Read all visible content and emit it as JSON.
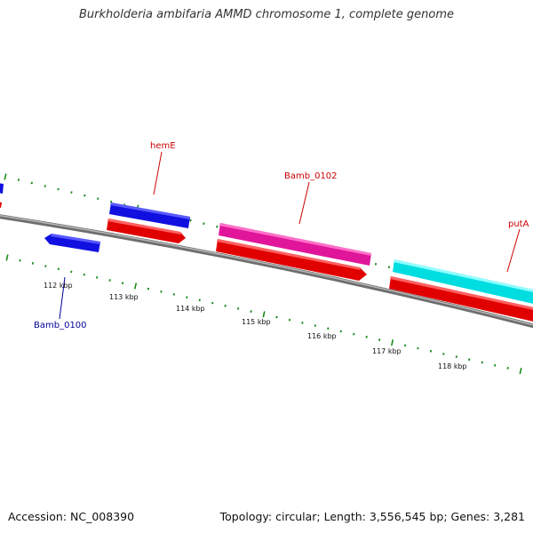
{
  "title": "Burkholderia ambifaria AMMD chromosome 1, complete genome",
  "footer": {
    "accession": "Accession: NC_008390",
    "stats": "Topology: circular; Length: 3,556,545 bp; Genes: 3,281"
  },
  "colors": {
    "forward_gene": "#1010e0",
    "reverse_gene": "#e00000",
    "pink_gene": "#e0159a",
    "cyan_gene": "#00dde0",
    "backbone": "#808080",
    "tick": "#1a8a1a",
    "label_red": "#cc0000",
    "label_blue": "#000099"
  },
  "genes": [
    {
      "name": "hemE",
      "label_color": "red"
    },
    {
      "name": "Bamb_0102",
      "label_color": "red"
    },
    {
      "name": "putA",
      "label_color": "red"
    },
    {
      "name": "Bamb_0100",
      "label_color": "blue"
    }
  ],
  "ruler": {
    "ticks": [
      "112 kbp",
      "113 kbp",
      "114 kbp",
      "115 kbp",
      "116 kbp",
      "117 kbp",
      "118 kbp"
    ]
  }
}
